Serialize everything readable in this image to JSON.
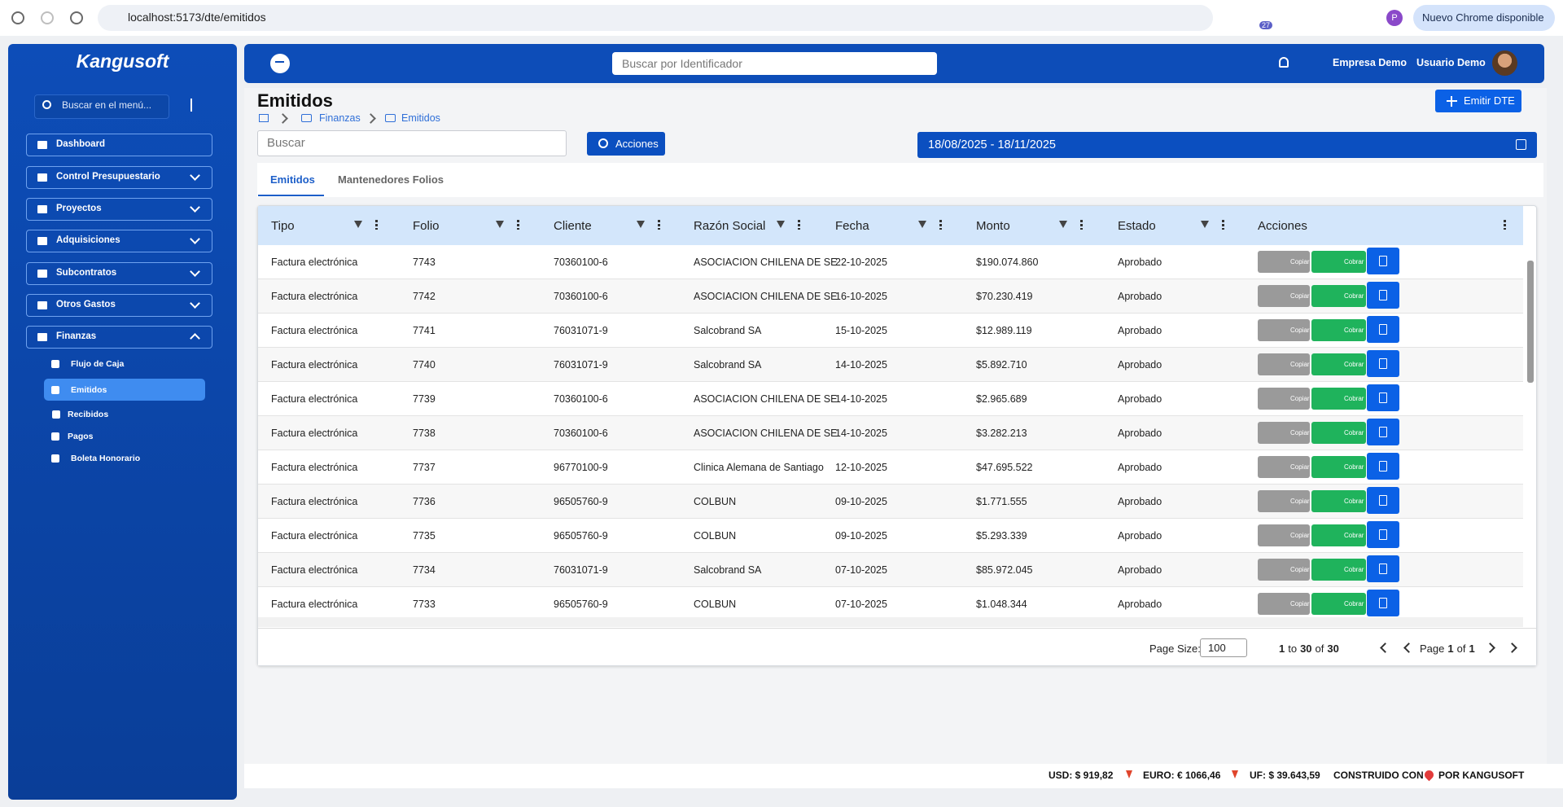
{
  "browser": {
    "url": "localhost:5173/dte/emitidos",
    "extension_badge": "27",
    "profile": "P",
    "update": "Nuevo Chrome disponible"
  },
  "sidebar": {
    "brand": "Kangusoft",
    "search": "Buscar en el menú...",
    "items": [
      {
        "label": "Dashboard"
      },
      {
        "label": "Control Presupuestario"
      },
      {
        "label": "Proyectos"
      },
      {
        "label": "Adquisiciones"
      },
      {
        "label": "Subcontratos"
      },
      {
        "label": "Otros Gastos"
      },
      {
        "label": "Finanzas"
      }
    ],
    "subitems": [
      "Flujo de Caja",
      "Emitidos",
      "Recibidos",
      "Pagos",
      "Boleta Honorario"
    ]
  },
  "topbar": {
    "search": "Buscar por Identificador",
    "company": "Empresa Demo",
    "user": "Usuario Demo"
  },
  "page": {
    "title": "Emitidos",
    "breadcrumb": [
      "Finanzas",
      "Emitidos"
    ],
    "primary_button": "Emitir DTE",
    "search": "Buscar",
    "actions_button": "Acciones",
    "date_range": "18/08/2025 - 18/11/2025",
    "tabs": [
      "Emitidos",
      "Mantenedores Folios"
    ]
  },
  "table": {
    "columns": [
      "Tipo",
      "Folio",
      "Cliente",
      "Razón Social",
      "Fecha",
      "Monto",
      "Estado",
      "Acciones"
    ],
    "row_actions": [
      "Copiar",
      "Cobrar"
    ],
    "rows": [
      [
        "Factura electrónica",
        7743,
        "70360100-6",
        "ASOCIACION CHILENA DE SE",
        "22-10-2025",
        "$190.074.860",
        "Aprobado"
      ],
      [
        "Factura electrónica",
        7742,
        "70360100-6",
        "ASOCIACION CHILENA DE SE",
        "16-10-2025",
        "$70.230.419",
        "Aprobado"
      ],
      [
        "Factura electrónica",
        7741,
        "76031071-9",
        "Salcobrand SA",
        "15-10-2025",
        "$12.989.119",
        "Aprobado"
      ],
      [
        "Factura electrónica",
        7740,
        "76031071-9",
        "Salcobrand SA",
        "14-10-2025",
        "$5.892.710",
        "Aprobado"
      ],
      [
        "Factura electrónica",
        7739,
        "70360100-6",
        "ASOCIACION CHILENA DE SE",
        "14-10-2025",
        "$2.965.689",
        "Aprobado"
      ],
      [
        "Factura electrónica",
        7738,
        "70360100-6",
        "ASOCIACION CHILENA DE SE",
        "14-10-2025",
        "$3.282.213",
        "Aprobado"
      ],
      [
        "Factura electrónica",
        7737,
        "96770100-9",
        "Clinica Alemana de Santiago",
        "12-10-2025",
        "$47.695.522",
        "Aprobado"
      ],
      [
        "Factura electrónica",
        7736,
        "96505760-9",
        "COLBUN",
        "09-10-2025",
        "$1.771.555",
        "Aprobado"
      ],
      [
        "Factura electrónica",
        7735,
        "96505760-9",
        "COLBUN",
        "09-10-2025",
        "$5.293.339",
        "Aprobado"
      ],
      [
        "Factura electrónica",
        7734,
        "76031071-9",
        "Salcobrand SA",
        "07-10-2025",
        "$85.972.045",
        "Aprobado"
      ],
      [
        "Factura electrónica",
        7733,
        "96505760-9",
        "COLBUN",
        "07-10-2025",
        "$1.048.344",
        "Aprobado"
      ]
    ]
  },
  "pagination": {
    "page_size_label": "Page Size:",
    "page_size": "100",
    "range_from": 1,
    "range_to_word": "to",
    "range_to": 30,
    "range_of_word": "of",
    "range_total": 30,
    "page_word": "Page",
    "page_current": 1,
    "page_of_word": "of",
    "page_total": 1
  },
  "footer": {
    "usd": "USD: $ 919,82",
    "euro": "EURO: € 1066,46",
    "uf": "UF: $ 39.643,59",
    "built_with": "CONSTRUIDO CON",
    "built_by": "POR KANGUSOFT"
  }
}
